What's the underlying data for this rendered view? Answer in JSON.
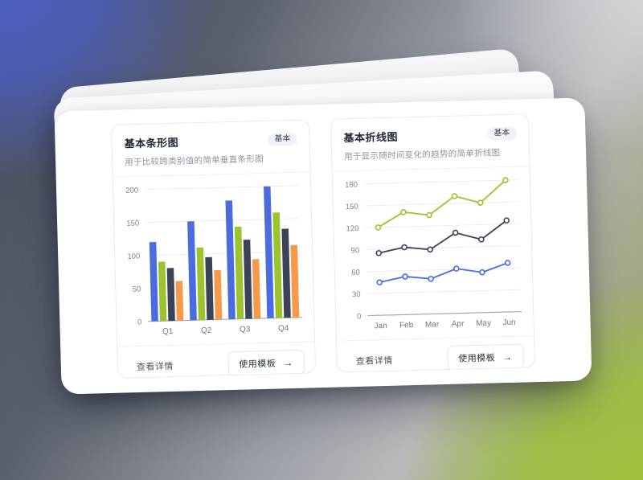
{
  "theme": {
    "bg_blue": "#4c60c6",
    "bg_green": "#a2c43e",
    "bg_gray": "#989ca4",
    "card_bg": "#ffffff",
    "card_border": "#e8eaef",
    "grid_color": "#ebedf1",
    "axis_color": "#a3a9b3",
    "tick_label_color": "#7d8492",
    "x_label_color": "#6e7581"
  },
  "cards": [
    {
      "title": "基本条形图",
      "badge": "基本",
      "subtitle": "用于比较跨类别值的简单垂直条形图",
      "actions": {
        "view_details": "查看详情",
        "use_template": "使用模板",
        "arrow_icon": "→"
      },
      "chart_data": {
        "type": "bar",
        "title": "基本条形图",
        "categories": [
          "Q1",
          "Q2",
          "Q3",
          "Q4"
        ],
        "series": [
          {
            "name": "series-blue",
            "color": "#4a6ce0",
            "values": [
              120,
              150,
              180,
              200
            ]
          },
          {
            "name": "series-green",
            "color": "#9cc42e",
            "values": [
              90,
              110,
              140,
              160
            ]
          },
          {
            "name": "series-dark",
            "color": "#3c4257",
            "values": [
              80,
              95,
              120,
              135
            ]
          },
          {
            "name": "series-orange",
            "color": "#f8994a",
            "values": [
              60,
              75,
              90,
              110
            ]
          }
        ],
        "xlabel": "",
        "ylabel": "",
        "yticks": [
          0,
          50,
          100,
          150,
          200
        ],
        "ylim": [
          0,
          200
        ],
        "grid": true,
        "legend": false
      }
    },
    {
      "title": "基本折线图",
      "badge": "基本",
      "subtitle": "用于显示随时间变化的趋势的简单折线图",
      "actions": {
        "view_details": "查看详情",
        "use_template": "使用模板",
        "arrow_icon": "→"
      },
      "chart_data": {
        "type": "line",
        "title": "基本折线图",
        "x": [
          "Jan",
          "Feb",
          "Mar",
          "Apr",
          "May",
          "Jun"
        ],
        "series": [
          {
            "name": "series-green",
            "color": "#9cc42e",
            "values": [
              120,
              140,
              135,
              160,
              150,
              180
            ]
          },
          {
            "name": "series-dark",
            "color": "#3c4257",
            "values": [
              85,
              92,
              88,
              110,
              100,
              125
            ]
          },
          {
            "name": "series-blue",
            "color": "#4a6ce0",
            "values": [
              45,
              52,
              48,
              61,
              55,
              67
            ]
          }
        ],
        "xlabel": "",
        "ylabel": "",
        "yticks": [
          0,
          30,
          60,
          90,
          120,
          150,
          180
        ],
        "ylim": [
          0,
          180
        ],
        "grid": true,
        "legend": false,
        "point_style": "open-circle"
      }
    }
  ]
}
